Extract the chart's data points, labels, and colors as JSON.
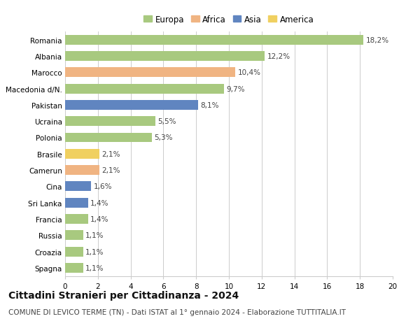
{
  "categories": [
    "Romania",
    "Albania",
    "Marocco",
    "Macedonia d/N.",
    "Pakistan",
    "Ucraina",
    "Polonia",
    "Brasile",
    "Camerun",
    "Cina",
    "Sri Lanka",
    "Francia",
    "Russia",
    "Croazia",
    "Spagna"
  ],
  "values": [
    18.2,
    12.2,
    10.4,
    9.7,
    8.1,
    5.5,
    5.3,
    2.1,
    2.1,
    1.6,
    1.4,
    1.4,
    1.1,
    1.1,
    1.1
  ],
  "labels": [
    "18,2%",
    "12,2%",
    "10,4%",
    "9,7%",
    "8,1%",
    "5,5%",
    "5,3%",
    "2,1%",
    "2,1%",
    "1,6%",
    "1,4%",
    "1,4%",
    "1,1%",
    "1,1%",
    "1,1%"
  ],
  "continents": [
    "Europa",
    "Europa",
    "Africa",
    "Europa",
    "Asia",
    "Europa",
    "Europa",
    "America",
    "Africa",
    "Asia",
    "Asia",
    "Europa",
    "Europa",
    "Europa",
    "Europa"
  ],
  "continent_colors": {
    "Europa": "#a8c97f",
    "Africa": "#f0b482",
    "Asia": "#6085c0",
    "America": "#f0d060"
  },
  "legend_order": [
    "Europa",
    "Africa",
    "Asia",
    "America"
  ],
  "title": "Cittadini Stranieri per Cittadinanza - 2024",
  "subtitle": "COMUNE DI LEVICO TERME (TN) - Dati ISTAT al 1° gennaio 2024 - Elaborazione TUTTITALIA.IT",
  "xlim": [
    0,
    20
  ],
  "xticks": [
    0,
    2,
    4,
    6,
    8,
    10,
    12,
    14,
    16,
    18,
    20
  ],
  "background_color": "#ffffff",
  "grid_color": "#cccccc",
  "bar_height": 0.6,
  "title_fontsize": 10,
  "subtitle_fontsize": 7.5,
  "label_fontsize": 7.5,
  "tick_fontsize": 7.5,
  "legend_fontsize": 8.5
}
